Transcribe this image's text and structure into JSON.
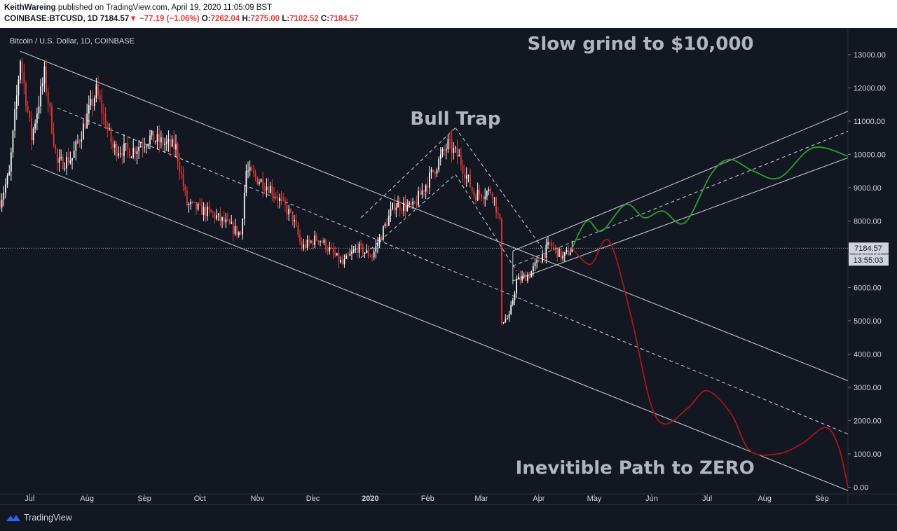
{
  "header": {
    "author": "KeithWareing",
    "published": "published on TradingView.com, April 19, 2020 11:05:09 BST",
    "symbol": "COINBASE:BTCUSD, 1D",
    "last": "7184.57",
    "change": "−77.19 (−1.06%)",
    "open_label": "O:",
    "open": "7262.04",
    "high_label": "H:",
    "high": "7275.00",
    "low_label": "L:",
    "low": "7102.52",
    "close_label": "C:",
    "close": "7184.57"
  },
  "colors": {
    "background": "#131722",
    "up_candle": "#ffffff",
    "down_candle": "#e53935",
    "bull_path": "#2e9c2e",
    "bear_path": "#a5171b",
    "trend_lines": "#d1d4dc"
  },
  "footer": {
    "brand": "TradingView",
    "logo_icon": "tradingview-logo-icon"
  },
  "chart_data": {
    "type": "candlestick",
    "title": "Bitcoin / U.S. Dollar, 1D, COINBASE",
    "last_price_label": "7184.57",
    "countdown_label": "13:55:03",
    "ylim": [
      -200,
      13800
    ],
    "y_ticks": [
      0,
      1000,
      2000,
      3000,
      4000,
      5000,
      6000,
      7000,
      8000,
      9000,
      10000,
      11000,
      12000,
      13000
    ],
    "y_tick_labels": [
      "0.00",
      "1000.00",
      "2000.00",
      "3000.00",
      "4000.00",
      "5000.00",
      "6000.00",
      "7000.00",
      "8000.00",
      "9000.00",
      "10000.00",
      "11000.00",
      "12000.00",
      "13000.00"
    ],
    "x_range": [
      "2019-06-15",
      "2020-09-15"
    ],
    "x_ticks": [
      {
        "date": "2019-07-01",
        "label": "Jul"
      },
      {
        "date": "2019-08-01",
        "label": "Aug"
      },
      {
        "date": "2019-09-01",
        "label": "Sep"
      },
      {
        "date": "2019-10-01",
        "label": "Oct"
      },
      {
        "date": "2019-11-01",
        "label": "Nov"
      },
      {
        "date": "2019-12-01",
        "label": "Dec"
      },
      {
        "date": "2020-01-01",
        "label": "2020"
      },
      {
        "date": "2020-02-01",
        "label": "Feb"
      },
      {
        "date": "2020-03-01",
        "label": "Mar"
      },
      {
        "date": "2020-04-01",
        "label": "Apr"
      },
      {
        "date": "2020-05-01",
        "label": "May"
      },
      {
        "date": "2020-06-01",
        "label": "Jun"
      },
      {
        "date": "2020-07-01",
        "label": "Jul"
      },
      {
        "date": "2020-08-01",
        "label": "Aug"
      },
      {
        "date": "2020-09-01",
        "label": "Sep"
      }
    ],
    "price_anchors": [
      [
        "2019-06-15",
        8600
      ],
      [
        "2019-06-20",
        9400
      ],
      [
        "2019-06-26",
        12900
      ],
      [
        "2019-07-02",
        10500
      ],
      [
        "2019-07-09",
        12400
      ],
      [
        "2019-07-16",
        9700
      ],
      [
        "2019-07-24",
        9900
      ],
      [
        "2019-08-06",
        11900
      ],
      [
        "2019-08-15",
        10200
      ],
      [
        "2019-08-25",
        10100
      ],
      [
        "2019-09-04",
        10500
      ],
      [
        "2019-09-18",
        10200
      ],
      [
        "2019-09-24",
        8500
      ],
      [
        "2019-10-08",
        8200
      ],
      [
        "2019-10-23",
        7600
      ],
      [
        "2019-10-26",
        9500
      ],
      [
        "2019-11-08",
        9000
      ],
      [
        "2019-11-20",
        8100
      ],
      [
        "2019-11-25",
        7200
      ],
      [
        "2019-12-04",
        7500
      ],
      [
        "2019-12-17",
        6700
      ],
      [
        "2019-12-25",
        7200
      ],
      [
        "2020-01-02",
        6950
      ],
      [
        "2020-01-14",
        8500
      ],
      [
        "2020-01-24",
        8400
      ],
      [
        "2020-02-12",
        10300
      ],
      [
        "2020-02-18",
        9900
      ],
      [
        "2020-02-26",
        8800
      ],
      [
        "2020-03-07",
        8900
      ],
      [
        "2020-03-11",
        7900
      ],
      [
        "2020-03-12",
        5000
      ],
      [
        "2020-03-16",
        5100
      ],
      [
        "2020-03-20",
        6200
      ],
      [
        "2020-03-27",
        6400
      ],
      [
        "2020-04-07",
        7300
      ],
      [
        "2020-04-14",
        6900
      ],
      [
        "2020-04-19",
        7185
      ]
    ],
    "bull_projection": [
      [
        "2020-04-19",
        7185
      ],
      [
        "2020-04-27",
        8000
      ],
      [
        "2020-05-05",
        7700
      ],
      [
        "2020-05-18",
        8500
      ],
      [
        "2020-05-28",
        8100
      ],
      [
        "2020-06-07",
        8300
      ],
      [
        "2020-06-19",
        7950
      ],
      [
        "2020-07-03",
        9400
      ],
      [
        "2020-07-13",
        9850
      ],
      [
        "2020-07-26",
        9500
      ],
      [
        "2020-08-09",
        9300
      ],
      [
        "2020-08-27",
        10200
      ],
      [
        "2020-09-15",
        9950
      ]
    ],
    "bear_projection": [
      [
        "2020-04-19",
        7185
      ],
      [
        "2020-04-29",
        6700
      ],
      [
        "2020-05-09",
        7400
      ],
      [
        "2020-05-21",
        5100
      ],
      [
        "2020-05-31",
        2600
      ],
      [
        "2020-06-08",
        1900
      ],
      [
        "2020-06-21",
        2400
      ],
      [
        "2020-07-01",
        2900
      ],
      [
        "2020-07-14",
        2200
      ],
      [
        "2020-07-24",
        1100
      ],
      [
        "2020-08-08",
        1000
      ],
      [
        "2020-08-21",
        1300
      ],
      [
        "2020-09-03",
        1800
      ],
      [
        "2020-09-10",
        1200
      ],
      [
        "2020-09-15",
        0
      ]
    ],
    "trend_lines": [
      {
        "style": "solid",
        "from": [
          "2019-06-26",
          13100
        ],
        "to": [
          "2020-09-15",
          3200
        ]
      },
      {
        "style": "solid",
        "from": [
          "2019-07-02",
          9700
        ],
        "to": [
          "2020-09-15",
          -100
        ]
      },
      {
        "style": "dashed",
        "from": [
          "2019-07-16",
          11400
        ],
        "to": [
          "2020-09-15",
          1600
        ]
      },
      {
        "style": "solid",
        "from": [
          "2020-03-18",
          6200
        ],
        "to": [
          "2020-09-15",
          9900
        ]
      },
      {
        "style": "solid",
        "from": [
          "2020-03-18",
          7100
        ],
        "to": [
          "2020-09-15",
          11300
        ]
      },
      {
        "style": "dashed",
        "from": [
          "2020-03-18",
          6650
        ],
        "to": [
          "2020-09-15",
          10700
        ]
      },
      {
        "style": "dashed",
        "from": [
          "2019-12-27",
          8100
        ],
        "to": [
          "2020-02-16",
          10800
        ]
      },
      {
        "style": "dashed",
        "from": [
          "2020-02-16",
          10800
        ],
        "to": [
          "2020-04-04",
          7100
        ]
      },
      {
        "style": "dashed",
        "from": [
          "2019-12-27",
          6900
        ],
        "to": [
          "2020-02-16",
          9400
        ]
      },
      {
        "style": "dashed",
        "from": [
          "2020-02-16",
          9400
        ],
        "to": [
          "2020-03-20",
          6500
        ]
      },
      {
        "style": "solid",
        "from": [
          "2020-03-18",
          6100
        ],
        "to": [
          "2020-03-18",
          7100
        ]
      }
    ],
    "annotations": [
      {
        "text": "Slow grind to $10,000",
        "at": [
          "2020-05-26",
          13150
        ]
      },
      {
        "text": "Bull Trap",
        "at": [
          "2020-02-16",
          10900
        ]
      },
      {
        "text": "Inevitible Path to ZERO",
        "at": [
          "2020-05-23",
          400
        ]
      }
    ]
  }
}
